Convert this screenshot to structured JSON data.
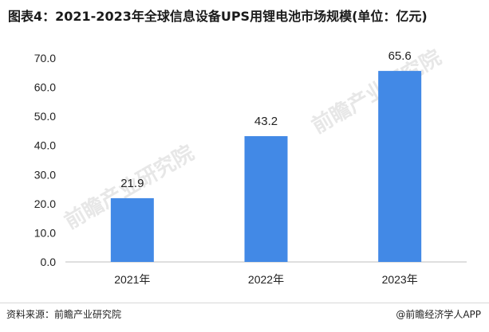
{
  "title": "图表4：2021-2023年全球信息设备UPS用锂电池市场规模(单位：亿元)",
  "footer": {
    "source": "资料来源：前瞻产业研究院",
    "credit": "@前瞻经济学人APP"
  },
  "watermark": "前瞻产业研究院",
  "colors": {
    "bar": "#4289E6"
  },
  "chart_data": {
    "type": "bar",
    "categories": [
      "2021年",
      "2022年",
      "2023年"
    ],
    "values": [
      21.9,
      43.2,
      65.6
    ],
    "data_labels": [
      "21.9",
      "43.2",
      "65.6"
    ],
    "ylim": [
      0,
      70
    ],
    "yticks": [
      "0.0",
      "10.0",
      "20.0",
      "30.0",
      "40.0",
      "50.0",
      "60.0",
      "70.0"
    ],
    "title": "图表4：2021-2023年全球信息设备UPS用锂电池市场规模(单位：亿元)",
    "xlabel": "",
    "ylabel": "",
    "grid": false,
    "legend": false
  }
}
